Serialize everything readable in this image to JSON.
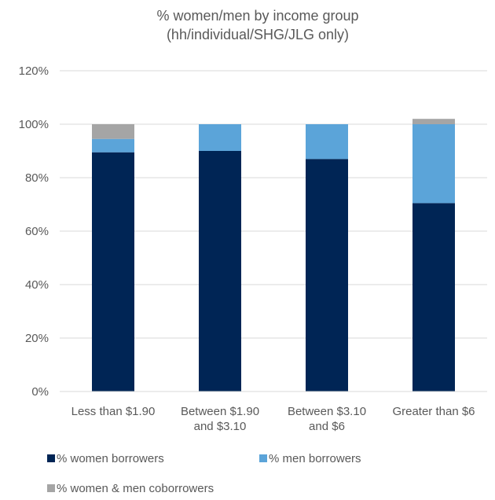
{
  "chart_data": {
    "type": "bar",
    "stacked": true,
    "title": [
      "% women/men by income group",
      "(hh/individual/SHG/JLG only)"
    ],
    "xlabel": "",
    "ylabel": "",
    "categories": [
      [
        "Less than $1.90"
      ],
      [
        "Between $1.90",
        "and $3.10"
      ],
      [
        "Between $3.10",
        "and $6"
      ],
      [
        "Greater than $6"
      ]
    ],
    "ylim": [
      0,
      120
    ],
    "yticks": [
      "0%",
      "20%",
      "40%",
      "60%",
      "80%",
      "100%",
      "120%"
    ],
    "grid": true,
    "legend_position": "bottom",
    "series": [
      {
        "name": "% women borrowers",
        "color": "#002555",
        "values": [
          89.5,
          90,
          87,
          70.5
        ]
      },
      {
        "name": "% men borrowers",
        "color": "#5ba4d9",
        "values": [
          5,
          10,
          13,
          29.5
        ]
      },
      {
        "name": "% women & men coborrowers",
        "color": "#a5a5a5",
        "values": [
          5.5,
          0,
          0,
          2
        ]
      }
    ]
  }
}
